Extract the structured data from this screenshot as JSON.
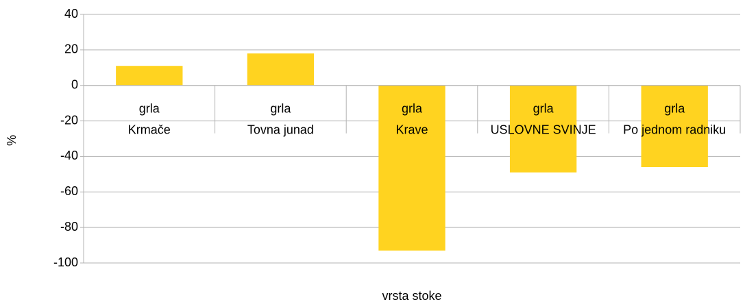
{
  "chart_data": {
    "type": "bar",
    "categories": [
      [
        "grla",
        "Krmače"
      ],
      [
        "grla",
        "Tovna junad"
      ],
      [
        "grla",
        "Krave"
      ],
      [
        "grla",
        "USLOVNE SVINJE"
      ],
      [
        "grla",
        "Po jednom radniku"
      ]
    ],
    "values": [
      11,
      18,
      -93,
      -49,
      -46
    ],
    "color": "#ffd320",
    "ylim": [
      -100,
      40
    ],
    "yticks": [
      -100,
      -80,
      -60,
      -40,
      -20,
      0,
      20,
      40
    ],
    "grid": true,
    "x_label": "vrsta stoke",
    "y_label": "%"
  }
}
